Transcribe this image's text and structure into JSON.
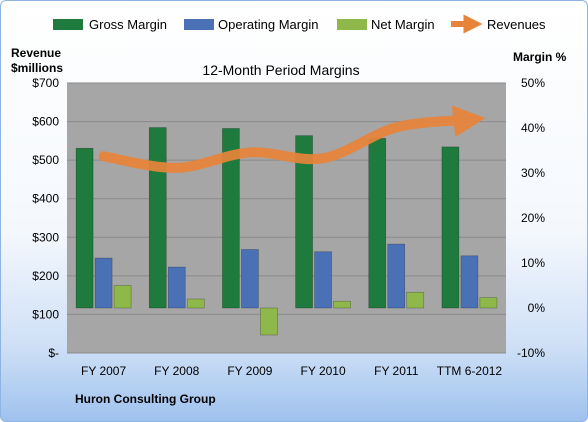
{
  "chart_data": {
    "type": "bar",
    "title": "12-Month Period Margins",
    "left_axis_label": [
      "Revenue",
      "$millions"
    ],
    "right_axis_label": "Margin %",
    "footer": "Huron Consulting Group",
    "categories": [
      "FY 2007",
      "FY 2008",
      "FY 2009",
      "FY 2010",
      "FY 2011",
      "TTM 6-2012"
    ],
    "left_axis": {
      "min": 0,
      "max": 700,
      "ticks": [
        0,
        100,
        200,
        300,
        400,
        500,
        600,
        700
      ],
      "tick_labels": [
        "$-",
        "$100",
        "$200",
        "$300",
        "$400",
        "$500",
        "$600",
        "$700"
      ]
    },
    "right_axis": {
      "min": -10,
      "max": 50,
      "ticks": [
        -10,
        0,
        10,
        20,
        30,
        40,
        50
      ],
      "tick_labels": [
        "-10%",
        "0%",
        "10%",
        "20%",
        "30%",
        "40%",
        "50%"
      ]
    },
    "series": [
      {
        "name": "Gross Margin",
        "axis": "right",
        "color": "#1f7a3e",
        "values": [
          35.5,
          40.1,
          39.9,
          38.3,
          37.7,
          35.8
        ]
      },
      {
        "name": "Operating Margin",
        "axis": "right",
        "color": "#4a70b5",
        "values": [
          11.1,
          9.1,
          13.0,
          12.5,
          14.2,
          11.6
        ]
      },
      {
        "name": "Net Margin",
        "axis": "right",
        "color": "#8fb84a",
        "values": [
          5.0,
          2.0,
          -6.0,
          1.5,
          3.5,
          2.3
        ]
      },
      {
        "name": "Revenues",
        "axis": "left",
        "color": "#e8843a",
        "values": [
          510,
          480,
          520,
          505,
          585,
          605
        ]
      }
    ],
    "legend_position": "top",
    "grid": true,
    "plot_background": "#a6a6a6"
  }
}
